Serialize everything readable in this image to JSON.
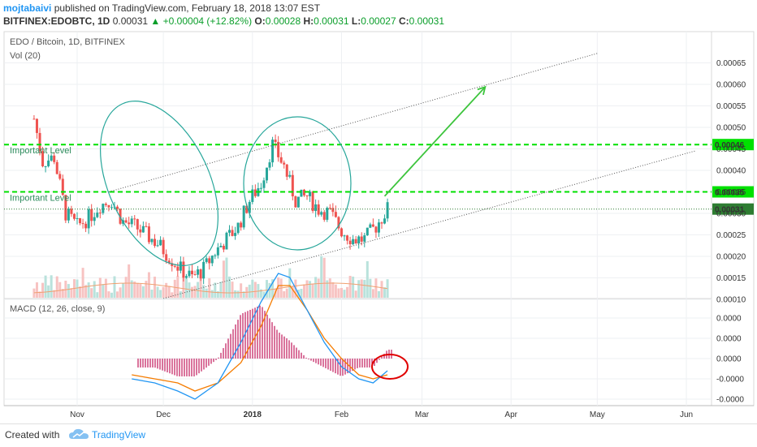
{
  "header": {
    "author": "mojtabaivi",
    "published": "published on TradingView.com, February 18, 2018 13:07 EST",
    "symbol": "BITFINEX:EDOBTC, 1D",
    "last": "0.00031",
    "change": "+0.00004 (+12.82%)",
    "o_label": "O:",
    "o_value": "0.00028",
    "h_label": "H:",
    "h_value": "0.00031",
    "l_label": "L:",
    "l_value": "0.00027",
    "c_label": "C:",
    "c_value": "0.00031"
  },
  "panels": {
    "price_title": "EDO / Bitcoin, 1D, BITFINEX",
    "volume_title": "Vol (20)",
    "macd_title": "MACD (12, 26, close, 9)"
  },
  "footer": {
    "created_with": "Created with",
    "brand": "TradingView"
  },
  "colors": {
    "bull": "#26a69a",
    "bear": "#ef5350",
    "level": "#00e000",
    "macd_line": "#2196f3",
    "signal_line": "#f57c00",
    "histogram": "#c2185b",
    "ellipse": "#26a69a",
    "arrow": "#3cc43c",
    "circle": "#e00000"
  },
  "chart_data": [
    {
      "type": "candlestick",
      "title": "EDO / Bitcoin, 1D, BITFINEX",
      "x_ticks": [
        "Nov",
        "Dec",
        "2018",
        "Feb",
        "Mar",
        "Apr",
        "May",
        "Jun"
      ],
      "y_ticks": [
        "0.00065",
        "0.00060",
        "0.00055",
        "0.00050",
        "0.00045",
        "0.00040",
        "0.00035",
        "0.00030",
        "0.00025",
        "0.00020",
        "0.00015",
        "0.00010"
      ],
      "ylim": [
        7.5e-05,
        0.00068
      ],
      "levels": [
        {
          "label": "Important Level",
          "value": 0.00046,
          "tag": "0.00046"
        },
        {
          "label": "Important Level",
          "value": 0.00035,
          "tag": "0.00035"
        }
      ],
      "last_price": {
        "value": 0.00031,
        "tag": "0.00031"
      },
      "trend_channel": {
        "upper": [
          [
            "2017-11-12",
            0.00035
          ],
          [
            "2018-05-01",
            0.000672
          ]
        ],
        "lower": [
          [
            "2017-12-01",
            0.000102
          ],
          [
            "2018-06-04",
            0.000445
          ]
        ]
      },
      "projection_arrow": [
        [
          "2018-02-16",
          0.00034
        ],
        [
          "2018-03-23",
          0.000594
        ]
      ],
      "pattern": "cup",
      "close_points": [
        [
          "2017-10-17",
          0.00052
        ],
        [
          "2017-10-20",
          0.00042
        ],
        [
          "2017-10-24",
          0.00043
        ],
        [
          "2017-10-28",
          0.0003
        ],
        [
          "2017-11-01",
          0.00027
        ],
        [
          "2017-11-05",
          0.00029
        ],
        [
          "2017-11-09",
          0.00032
        ],
        [
          "2017-11-13",
          0.00033
        ],
        [
          "2017-11-17",
          0.00028
        ],
        [
          "2017-11-21",
          0.00027
        ],
        [
          "2017-11-25",
          0.00025
        ],
        [
          "2017-11-29",
          0.00023
        ],
        [
          "2017-12-03",
          0.0002
        ],
        [
          "2017-12-07",
          0.00017
        ],
        [
          "2017-12-11",
          0.00015
        ],
        [
          "2017-12-15",
          0.00017
        ],
        [
          "2017-12-19",
          0.00021
        ],
        [
          "2017-12-23",
          0.00024
        ],
        [
          "2017-12-27",
          0.00027
        ],
        [
          "2017-12-31",
          0.00033
        ],
        [
          "2018-01-04",
          0.00037
        ],
        [
          "2018-01-08",
          0.00046
        ],
        [
          "2018-01-12",
          0.00041
        ],
        [
          "2018-01-16",
          0.00033
        ],
        [
          "2018-01-20",
          0.00034
        ],
        [
          "2018-01-24",
          0.00031
        ],
        [
          "2018-01-28",
          0.0003
        ],
        [
          "2018-02-01",
          0.00026
        ],
        [
          "2018-02-05",
          0.00024
        ],
        [
          "2018-02-09",
          0.00024
        ],
        [
          "2018-02-13",
          0.00027
        ],
        [
          "2018-02-17",
          0.00031
        ]
      ]
    },
    {
      "type": "bar",
      "title": "Vol (20)",
      "note": "volume bars shown in lower part of price panel, with 20-period moving average"
    },
    {
      "type": "line",
      "title": "MACD (12, 26, close, 9)",
      "y_ticks": [
        "0.0000",
        "0.0000",
        "0.0000",
        "-0.0000",
        "-0.0000"
      ],
      "series": [
        {
          "name": "MACD",
          "values": [
            -2.5e-05,
            -3e-05,
            -4e-05,
            -5e-05,
            -3e-05,
            2e-05,
            7e-05,
            0.000105,
            0.0001,
            6e-05,
            2e-05,
            -1e-05,
            -2.5e-05,
            -3e-05,
            -1.5e-05
          ]
        },
        {
          "name": "Signal",
          "values": [
            -2e-05,
            -2.5e-05,
            -3e-05,
            -4e-05,
            -3e-05,
            -5e-06,
            4e-05,
            9e-05,
            9e-05,
            6e-05,
            2.5e-05,
            0.0,
            -2e-05,
            -2.5e-05,
            -2e-05
          ]
        }
      ],
      "x": [
        "2017-11-20",
        "2017-11-28",
        "2017-12-06",
        "2017-12-12",
        "2017-12-20",
        "2017-12-28",
        "2018-01-04",
        "2018-01-10",
        "2018-01-14",
        "2018-01-20",
        "2018-01-26",
        "2018-02-01",
        "2018-02-07",
        "2018-02-12",
        "2018-02-17"
      ]
    }
  ]
}
